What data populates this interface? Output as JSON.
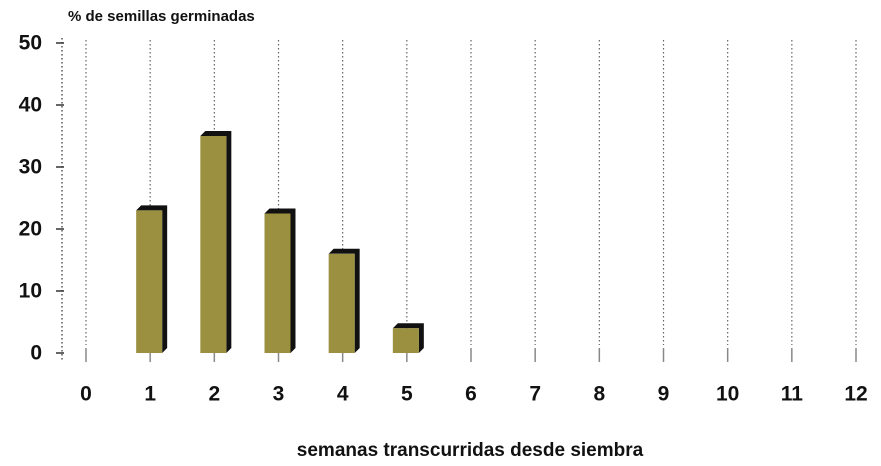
{
  "chart_data": {
    "type": "bar",
    "title": "% de semillas germinadas",
    "x_label": "semanas transcurridas desde siembra",
    "categories": [
      "0",
      "1",
      "2",
      "3",
      "4",
      "5",
      "6",
      "7",
      "8",
      "9",
      "10",
      "11",
      "12"
    ],
    "values": [
      0,
      23,
      35,
      22.5,
      16,
      4,
      0,
      0,
      0,
      0,
      0,
      0,
      0
    ],
    "color": "#9a9040",
    "ylim": [
      0,
      50
    ],
    "yticks": [
      0,
      10,
      20,
      30,
      40,
      50
    ]
  }
}
